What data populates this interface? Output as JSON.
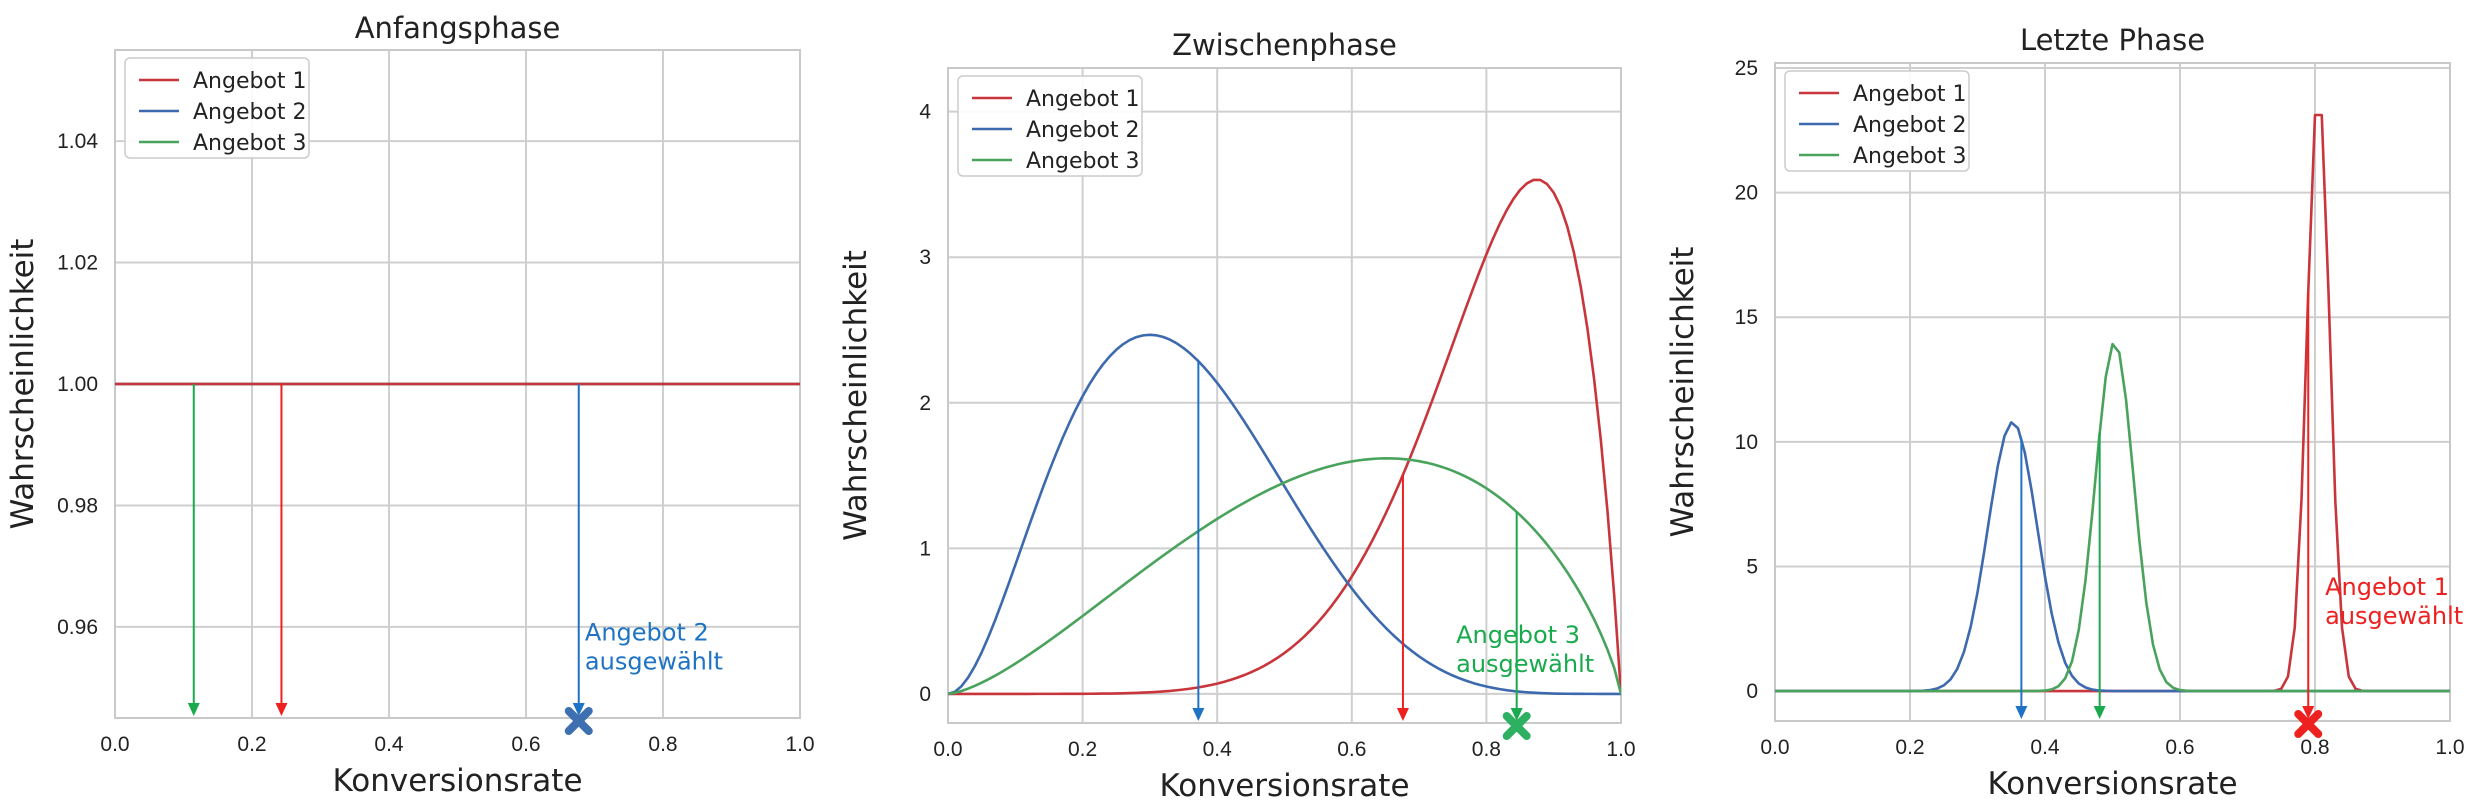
{
  "chart_data": [
    {
      "type": "line",
      "title": "Anfangsphase",
      "xlabel": "Konversionsrate",
      "ylabel": "Wahrscheinlichkeit",
      "xlim": [
        0.0,
        1.0
      ],
      "ylim": [
        0.945,
        1.055
      ],
      "xticks": [
        "0.0",
        "0.2",
        "0.4",
        "0.6",
        "0.8",
        "1.0"
      ],
      "xtick_values": [
        0.0,
        0.2,
        0.4,
        0.6,
        0.8,
        1.0
      ],
      "yticks": [
        "0.96",
        "0.98",
        "1.00",
        "1.02",
        "1.04"
      ],
      "ytick_values": [
        0.96,
        0.98,
        1.0,
        1.02,
        1.04
      ],
      "grid": true,
      "legend_position": "top-left",
      "series": [
        {
          "name": "Angebot 1",
          "color": "#c8353b",
          "dist": {
            "kind": "uniform",
            "value": 1.0
          }
        },
        {
          "name": "Angebot 2",
          "color": "#3d6aae",
          "dist": {
            "kind": "uniform",
            "value": 1.0
          }
        },
        {
          "name": "Angebot 3",
          "color": "#4aa35d",
          "dist": {
            "kind": "uniform",
            "value": 1.0
          }
        }
      ],
      "samples": [
        {
          "series": "Angebot 3",
          "x": 0.115,
          "y": 1.0,
          "color": "#1aaa4e"
        },
        {
          "series": "Angebot 1",
          "x": 0.243,
          "y": 1.0,
          "color": "#ee2121"
        },
        {
          "series": "Angebot 2",
          "x": 0.677,
          "y": 1.0,
          "color": "#1f73c4"
        }
      ],
      "selected": {
        "x": 0.677,
        "label": [
          "Angebot 2",
          "ausgewählt"
        ],
        "color": "#1f73c4",
        "marker_color": "#3e6fb0",
        "label_x": 0.686,
        "label_y": 0.953
      }
    },
    {
      "type": "line",
      "title": "Zwischenphase",
      "xlabel": "Konversionsrate",
      "ylabel": "Wahrscheinlichkeit",
      "xlim": [
        0.0,
        1.0
      ],
      "ylim": [
        -0.2,
        4.3
      ],
      "xticks": [
        "0.0",
        "0.2",
        "0.4",
        "0.6",
        "0.8",
        "1.0"
      ],
      "xtick_values": [
        0.0,
        0.2,
        0.4,
        0.6,
        0.8,
        1.0
      ],
      "yticks": [
        "0",
        "1",
        "2",
        "3",
        "4"
      ],
      "ytick_values": [
        0,
        1,
        2,
        3,
        4
      ],
      "grid": true,
      "legend_position": "top-left",
      "series": [
        {
          "name": "Angebot 1",
          "color": "#c8353b",
          "dist": {
            "kind": "beta",
            "a": 8,
            "b": 2
          }
        },
        {
          "name": "Angebot 2",
          "color": "#3d6aae",
          "dist": {
            "kind": "beta",
            "a": 3,
            "b": 5.667
          }
        },
        {
          "name": "Angebot 3",
          "color": "#4aa35d",
          "dist": {
            "kind": "beta",
            "a": 2.5,
            "b": 1.8
          }
        }
      ],
      "samples": [
        {
          "series": "Angebot 2",
          "x": 0.372,
          "color": "#1f73c4"
        },
        {
          "series": "Angebot 1",
          "x": 0.676,
          "color": "#ee2121"
        },
        {
          "series": "Angebot 3",
          "x": 0.845,
          "color": "#1aaa4e"
        }
      ],
      "selected": {
        "x": 0.845,
        "label": [
          "Angebot 3",
          "ausgewählt"
        ],
        "color": "#1aaa4e",
        "marker_color": "#2eb062",
        "label_x": 0.755,
        "label_y": 0.15
      }
    },
    {
      "type": "line",
      "title": "Letzte Phase",
      "xlabel": "Konversionsrate",
      "ylabel": "Wahrscheinlichkeit",
      "xlim": [
        0.0,
        1.0
      ],
      "ylim": [
        -1.2,
        25.2
      ],
      "xticks": [
        "0.0",
        "0.2",
        "0.4",
        "0.6",
        "0.8",
        "1.0"
      ],
      "xtick_values": [
        0.0,
        0.2,
        0.4,
        0.6,
        0.8,
        1.0
      ],
      "yticks": [
        "0",
        "5",
        "10",
        "15",
        "20",
        "25"
      ],
      "ytick_values": [
        0,
        5,
        10,
        15,
        20,
        25
      ],
      "grid": true,
      "legend_position": "top-left",
      "series": [
        {
          "name": "Angebot 1",
          "color": "#c8353b",
          "dist": {
            "kind": "gauss",
            "mu": 0.805,
            "sigma": 0.0165,
            "peak": 24.2
          }
        },
        {
          "name": "Angebot 2",
          "color": "#3d6aae",
          "dist": {
            "kind": "gauss",
            "mu": 0.352,
            "sigma": 0.0367,
            "peak": 10.8
          }
        },
        {
          "name": "Angebot 3",
          "color": "#4aa35d",
          "dist": {
            "kind": "gauss",
            "mu": 0.503,
            "sigma": 0.0284,
            "peak": 14.0
          }
        }
      ],
      "samples": [
        {
          "series": "Angebot 2",
          "x": 0.365,
          "color": "#1f73c4"
        },
        {
          "series": "Angebot 3",
          "x": 0.481,
          "color": "#1aaa4e"
        },
        {
          "series": "Angebot 1",
          "x": 0.79,
          "color": "#ee2121"
        }
      ],
      "selected": {
        "x": 0.79,
        "label": [
          "Angebot 1",
          "ausgewählt"
        ],
        "color": "#ee2121",
        "marker_color": "#ee2121",
        "label_x": 0.815,
        "label_y": 2.7
      }
    }
  ]
}
